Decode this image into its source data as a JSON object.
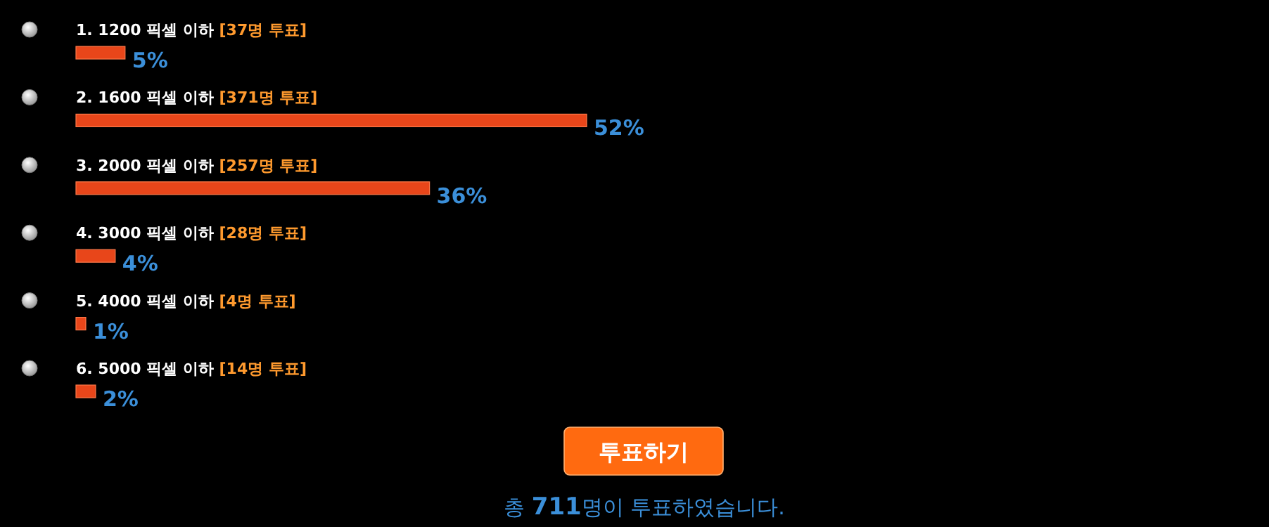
{
  "chart_data": {
    "type": "bar",
    "orientation": "horizontal",
    "categories": [
      "1. 1200 픽셀 이하 [37명 투표]",
      "2. 1600 픽셀 이하 [371명 투표]",
      "3. 2000 픽셀 이하 [257명 투표]",
      "4. 3000 픽셀 이하 [28명 투표]",
      "5. 4000 픽셀 이하 [4명 투표]",
      "6. 5000 픽셀 이하 [14명 투표]"
    ],
    "values": [
      5,
      52,
      36,
      4,
      1,
      2
    ],
    "value_labels": [
      "5%",
      "52%",
      "36%",
      "4%",
      "1%",
      "2%"
    ],
    "color": "#e8461a",
    "annotations": [
      "투표하기",
      "총 **711**명이 투표하였습니다."
    ]
  }
}
